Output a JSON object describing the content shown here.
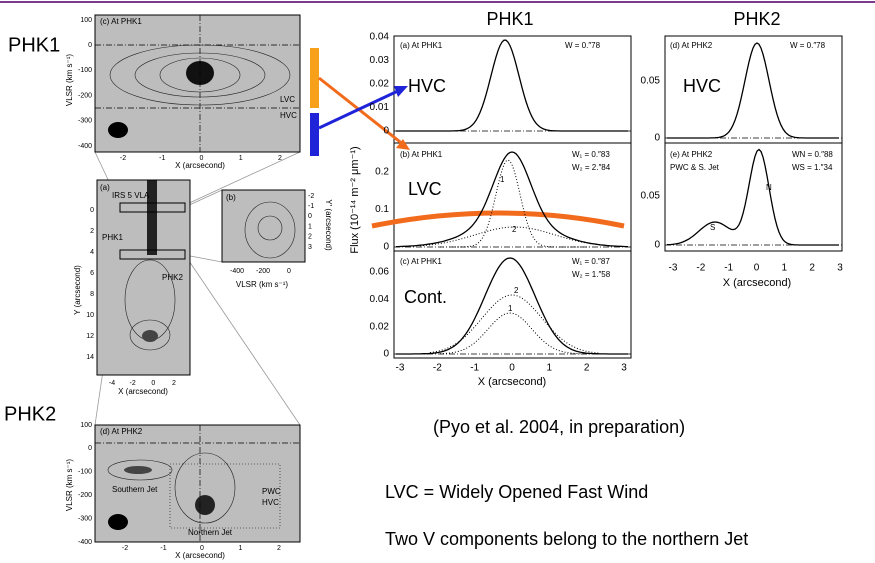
{
  "slide": {
    "column_titles": [
      "PHK1",
      "PHK2"
    ],
    "side_labels": [
      "PHK1",
      "PHK2"
    ],
    "citation": "(Pyo et al. 2004, in preparation)",
    "notes": [
      "LVC = Widely Opened Fast Wind",
      "Two V components belong to the northern Jet"
    ]
  },
  "maps": {
    "top": {
      "label": "(c) At PHK1",
      "y_label": "VLSR (km s⁻¹)",
      "x_label": "X (arcsecond)",
      "yticks": [
        100,
        0,
        -100,
        -200,
        -300,
        -400
      ],
      "xticks": [
        -2,
        -1,
        0,
        1,
        2
      ],
      "annotations": [
        "LVC",
        "HVC"
      ]
    },
    "overview": {
      "label": "(a)",
      "source": "IRS 5 VLA",
      "positions": [
        "PHK1",
        "PHK2"
      ],
      "y_label": "Y (arcsecond)",
      "x_label": "X (arcsecond)",
      "yticks": [
        0,
        2,
        4,
        6,
        8,
        10,
        12,
        14
      ],
      "xticks": [
        -4,
        -2,
        0,
        2
      ]
    },
    "inset": {
      "label": "(b)",
      "x_label": "VLSR (km s⁻¹)",
      "y_label": "Y′ (arcsecond)",
      "xticks": [
        -400,
        -200,
        0
      ],
      "yticks": [
        -2,
        -1,
        0,
        1,
        2,
        3
      ]
    },
    "bottom": {
      "label": "(d) At PHK2",
      "y_label": "VLSR (km s⁻¹)",
      "x_label": "X (arcsecond)",
      "yticks": [
        100,
        0,
        -100,
        -200,
        -300,
        -400
      ],
      "xticks": [
        -2,
        -1,
        0,
        1,
        2
      ],
      "annotations": [
        "Southern Jet",
        "Northern Jet",
        "PWC",
        "HVC"
      ]
    }
  },
  "spectra": {
    "y_label": "Flux (10⁻¹⁴ m⁻² μm⁻¹)",
    "x_label": "X (arcsecond)",
    "right_x_label": "X (arcsecond)",
    "xticks": [
      -3,
      -2,
      -1,
      0,
      1,
      2,
      3
    ],
    "right_xticks": [
      -3,
      -2,
      -1,
      0,
      1,
      2,
      3
    ],
    "panels": [
      {
        "label": "(a) At PHK1",
        "widths": [
          "W = 0.″78"
        ],
        "component": "HVC",
        "yticks": [
          0.04,
          0.03,
          0.02,
          0.01,
          0
        ]
      },
      {
        "label": "(b) At PHK1",
        "widths": [
          "W₁ = 0.″83",
          "W₂ = 2.″84"
        ],
        "component": "LVC",
        "curve_labels": [
          "1",
          "2"
        ],
        "yticks": [
          0.2,
          0.1,
          0
        ]
      },
      {
        "label": "(c) At PHK1",
        "widths": [
          "W₁ = 0.″87",
          "W₂ = 1.″58"
        ],
        "component": "Cont.",
        "curve_labels": [
          "2",
          "1"
        ],
        "yticks": [
          0.06,
          0.04,
          0.02,
          0
        ]
      },
      {
        "label": "(d) At PHK2",
        "widths": [
          "W = 0.″78"
        ],
        "component": "HVC",
        "yticks": [
          0.05,
          0
        ]
      },
      {
        "label": "(e) At PHK2",
        "widths": [
          "WN = 0.″88",
          "WS = 1.″34"
        ],
        "note": "PWC & S. Jet",
        "curve_labels": [
          "N",
          "S"
        ],
        "yticks": [
          0.05,
          0
        ]
      }
    ]
  }
}
